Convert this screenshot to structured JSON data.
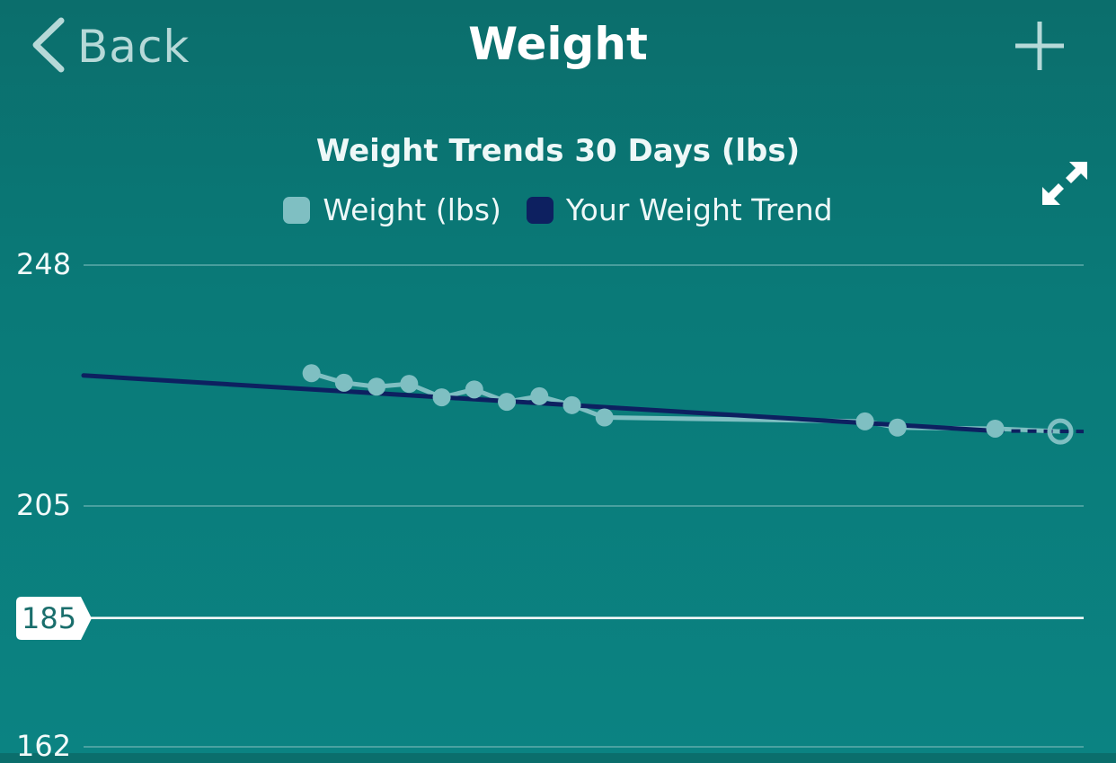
{
  "nav": {
    "back_label": "Back",
    "title": "Weight",
    "back_icon": "chevron-left-icon",
    "add_icon": "plus-icon"
  },
  "chart_header": {
    "expand_icon": "expand-arrows-icon"
  },
  "colors": {
    "background": "#0b7876",
    "weight_points": "#7fbfc2",
    "trend_line": "#0d2060",
    "goal_line": "#ffffff"
  },
  "chart_data": {
    "type": "line",
    "title": "Weight Trends 30 Days (lbs)",
    "legend": [
      "Weight (lbs)",
      "Your Weight Trend"
    ],
    "legend_placement": "top-center",
    "y_ticks": [
      248,
      205,
      185,
      162
    ],
    "ylim": [
      162,
      248
    ],
    "goal_value": 185,
    "grid": true,
    "x": [
      7,
      8,
      9,
      10,
      11,
      12,
      13,
      14,
      15,
      16,
      24,
      25,
      28,
      30
    ],
    "series": [
      {
        "name": "Weight (lbs)",
        "style": "points-and-line",
        "values": [
          228.7,
          227.0,
          226.3,
          226.8,
          224.4,
          225.8,
          223.6,
          224.6,
          223.0,
          220.8,
          220.1,
          219.0,
          218.8,
          218.3
        ],
        "last_point_hollow": true
      },
      {
        "name": "Your Weight Trend",
        "style": "line",
        "x": [
          0,
          28,
          30
        ],
        "values": [
          228.3,
          218.4,
          218.3
        ],
        "dashed_after": 28
      }
    ]
  }
}
